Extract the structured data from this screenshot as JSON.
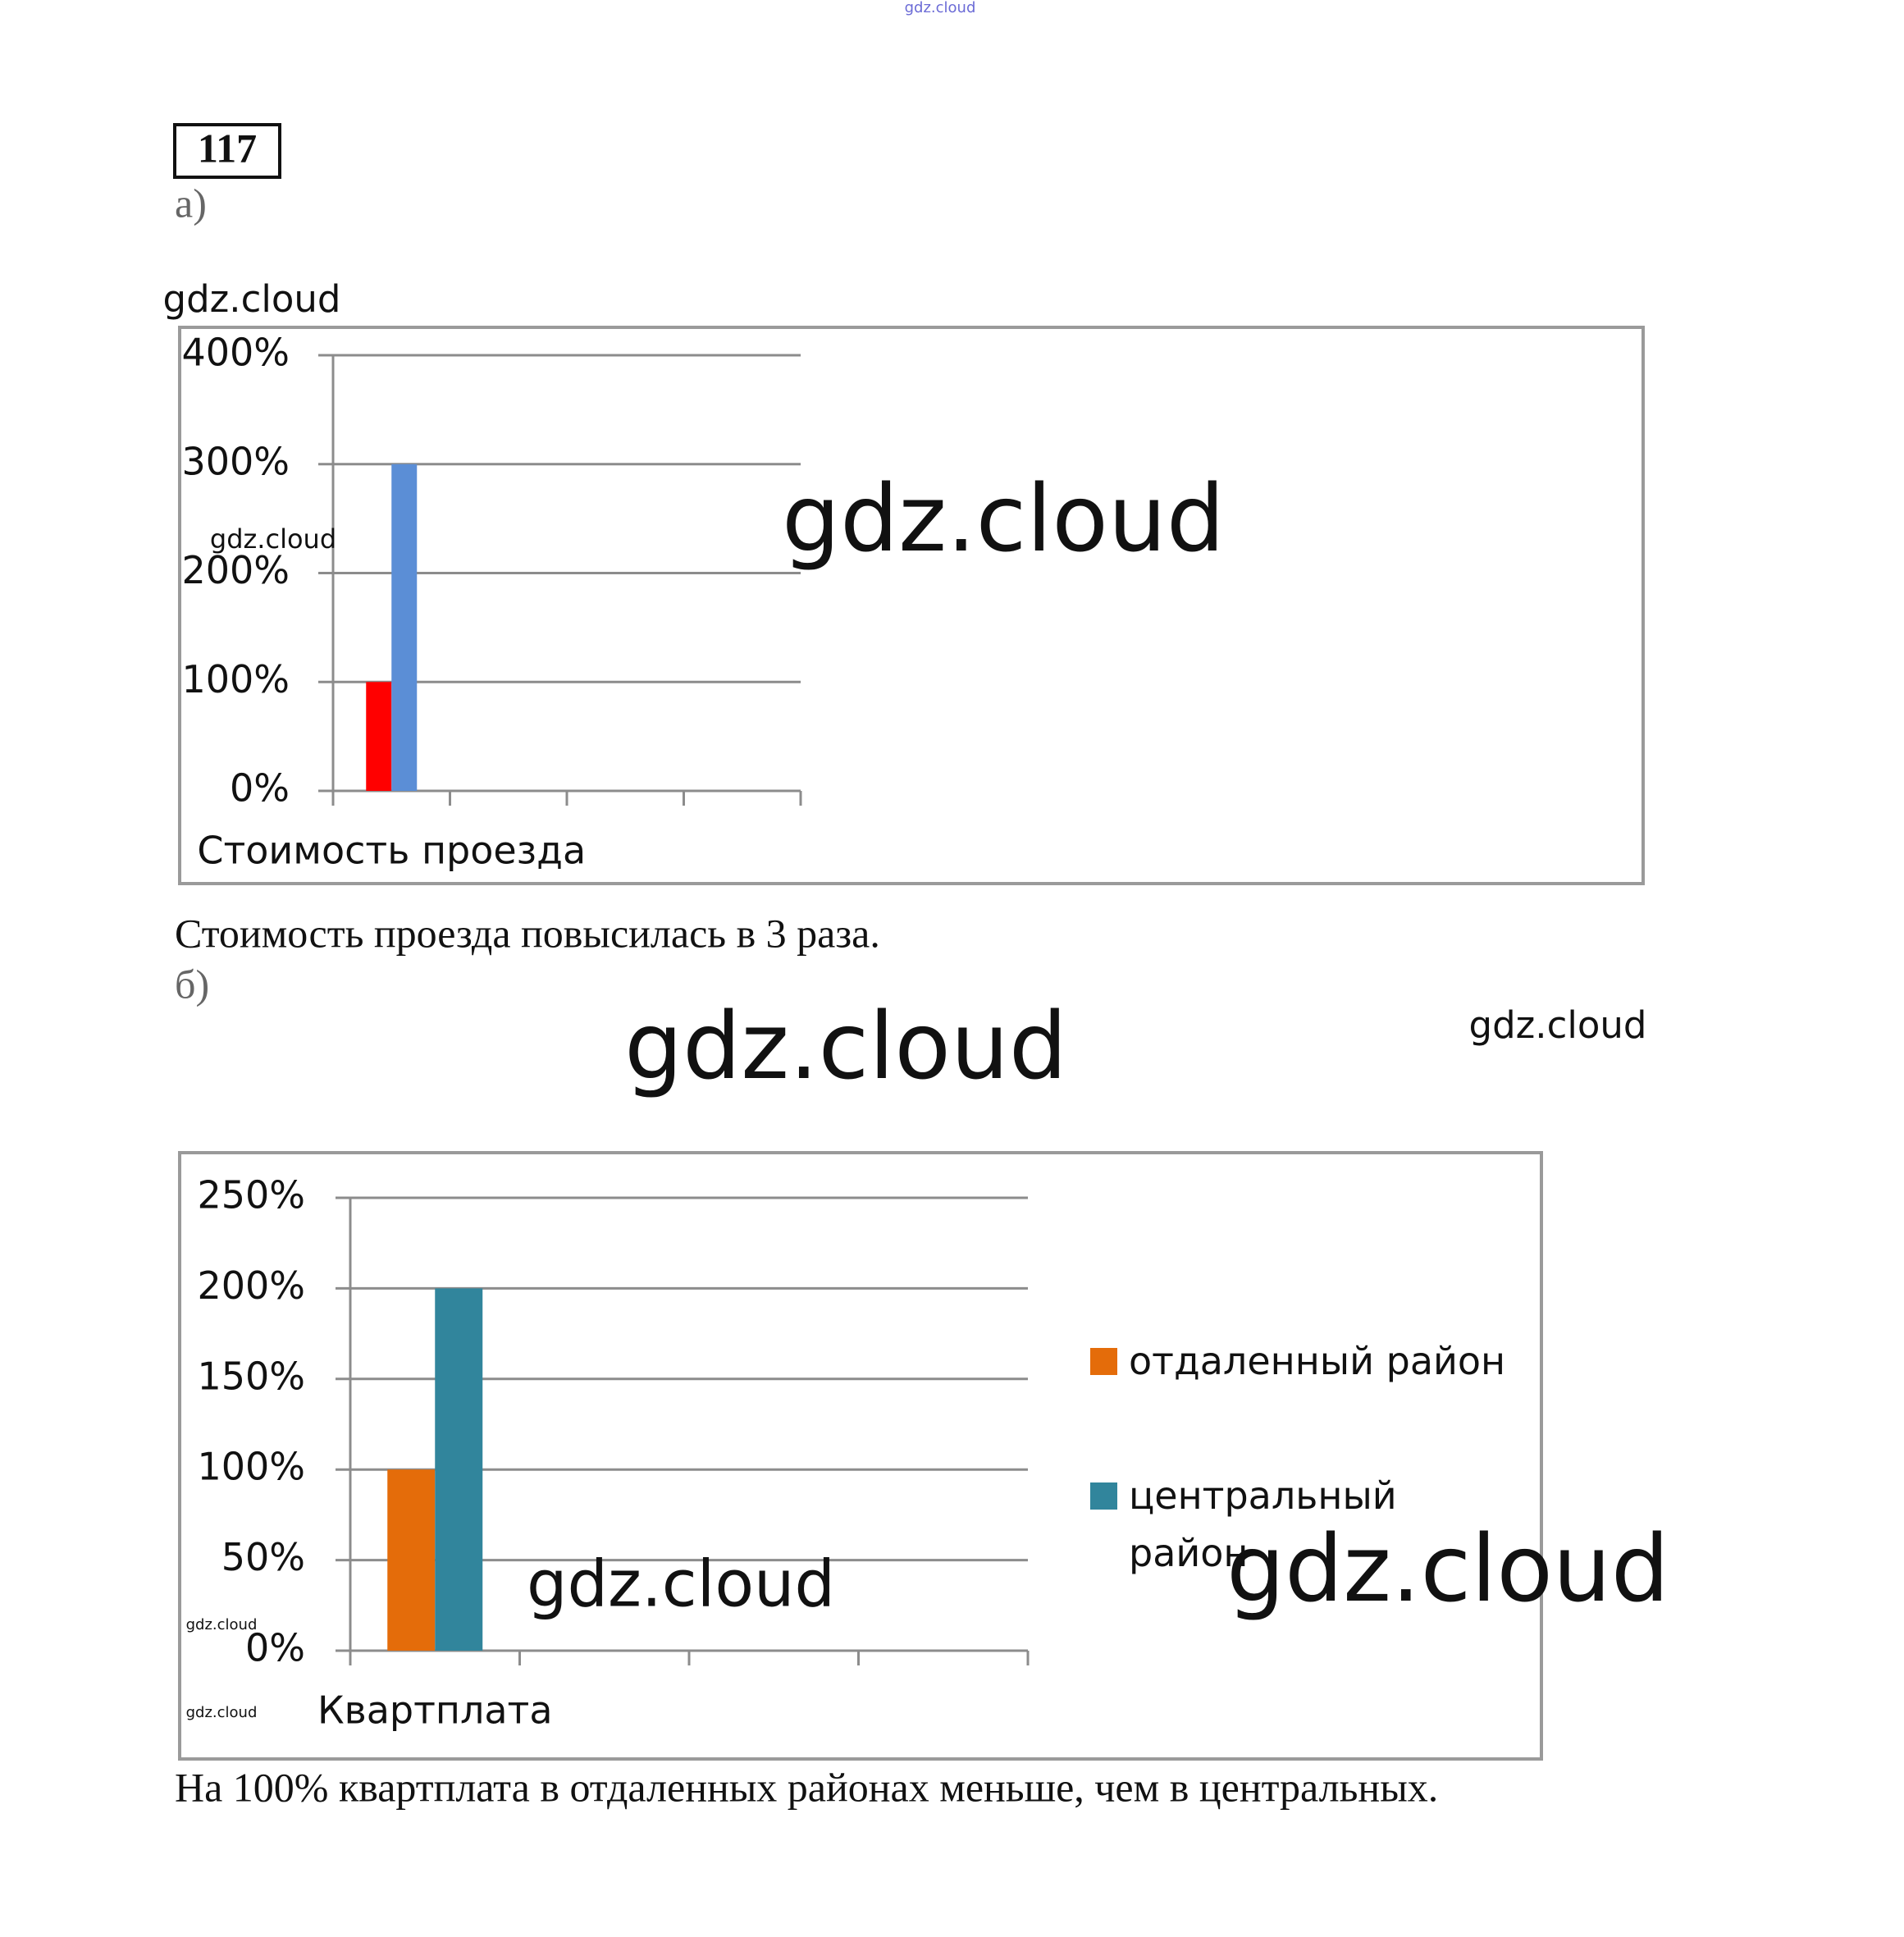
{
  "problem_number": "117",
  "part_a": "а)",
  "chart_data": [
    {
      "type": "bar",
      "categories": [
        "Стоимость проезда",
        null,
        null,
        null
      ],
      "series": [
        {
          "color": "#ff0000",
          "values": [
            100,
            null,
            null,
            null
          ]
        },
        {
          "color": "#5b8ed6",
          "values": [
            300,
            null,
            null,
            null
          ]
        }
      ],
      "ylim": [
        0,
        400
      ],
      "yticks": [
        {
          "value": 0,
          "label": "0%"
        },
        {
          "value": 100,
          "label": "100%"
        },
        {
          "value": 200,
          "label": "200%"
        },
        {
          "value": 300,
          "label": "300%"
        },
        {
          "value": 400,
          "label": "400%"
        }
      ],
      "grid": true
    },
    {
      "type": "bar",
      "categories": [
        "Квартплата",
        null,
        null,
        null
      ],
      "series": [
        {
          "name": "отдаленный район",
          "color": "#e46c0a",
          "values": [
            100,
            null,
            null,
            null
          ]
        },
        {
          "name": "центральный район",
          "color": "#31859c",
          "values": [
            200,
            null,
            null,
            null
          ]
        }
      ],
      "ylim": [
        0,
        250
      ],
      "yticks": [
        {
          "value": 0,
          "label": "0%"
        },
        {
          "value": 50,
          "label": "50%"
        },
        {
          "value": 100,
          "label": "100%"
        },
        {
          "value": 150,
          "label": "150%"
        },
        {
          "value": 200,
          "label": "200%"
        },
        {
          "value": 250,
          "label": "250%"
        }
      ],
      "grid": true,
      "legend": "right"
    }
  ],
  "conclusion_a": "Стоимость проезда повысилась в 3 раза.",
  "part_b": "б)",
  "conclusion_b": "На 100% квартплата в отдаленных районах меньше, чем в центральных.",
  "watermarks": [
    "gdz.cloud",
    "gdz.cloud",
    "gdz.cloud",
    "gdz.cloud",
    "gdz.cloud",
    "gdz.cloud",
    "gdz.cloud",
    "gdz.cloud",
    "gdz.cloud",
    "gdz.cloud"
  ]
}
